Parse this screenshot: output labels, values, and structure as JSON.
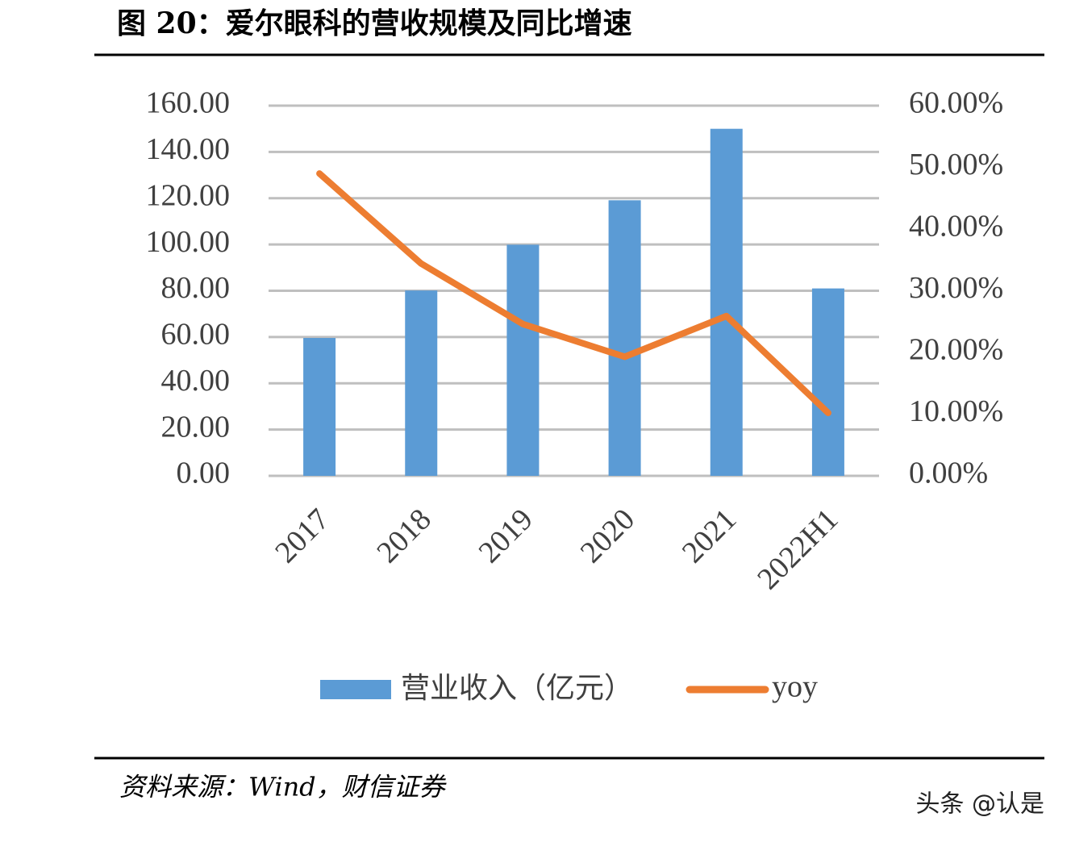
{
  "chart_data": {
    "type": "bar-line",
    "title": "图 20：爱尔眼科的营收规模及同比增速",
    "source": "资料来源：Wind，财信证券",
    "watermark": "头条 @认是",
    "categories": [
      "2017",
      "2018",
      "2019",
      "2020",
      "2021",
      "2022H1"
    ],
    "series": [
      {
        "name": "营业收入（亿元）",
        "type": "bar",
        "color": "#5b9bd5",
        "values": [
          59.6,
          80.1,
          99.9,
          119.1,
          150.0,
          81.0
        ]
      },
      {
        "name": "yoy",
        "type": "line",
        "axis": "y2",
        "color": "#ed7d31",
        "values": [
          49.0,
          34.4,
          24.6,
          19.3,
          25.9,
          10.2
        ]
      }
    ],
    "ylim": [
      0,
      160
    ],
    "yticks": [
      {
        "value": 0,
        "label": "0.00"
      },
      {
        "value": 20,
        "label": "20.00"
      },
      {
        "value": 40,
        "label": "40.00"
      },
      {
        "value": 60,
        "label": "60.00"
      },
      {
        "value": 80,
        "label": "80.00"
      },
      {
        "value": 100,
        "label": "100.00"
      },
      {
        "value": 120,
        "label": "120.00"
      },
      {
        "value": 140,
        "label": "140.00"
      },
      {
        "value": 160,
        "label": "160.00"
      }
    ],
    "y2lim": [
      0,
      60
    ],
    "y2ticks": [
      {
        "value": 0,
        "label": "0.00%"
      },
      {
        "value": 10,
        "label": "10.00%"
      },
      {
        "value": 20,
        "label": "20.00%"
      },
      {
        "value": 30,
        "label": "30.00%"
      },
      {
        "value": 40,
        "label": "40.00%"
      },
      {
        "value": 50,
        "label": "50.00%"
      },
      {
        "value": 60,
        "label": "60.00%"
      }
    ],
    "grid": true,
    "legend": "bottom"
  }
}
